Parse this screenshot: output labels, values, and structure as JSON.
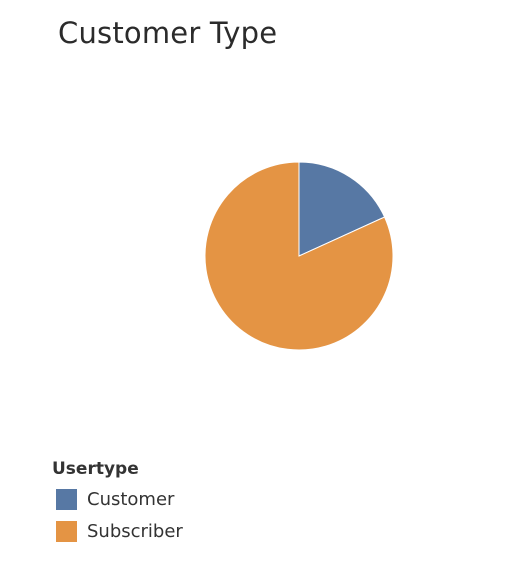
{
  "chart_data": {
    "type": "pie",
    "title": "Customer Type",
    "series": [
      {
        "name": "Usertype",
        "slices": [
          {
            "label": "Customer",
            "value": 18.2,
            "color": "#5778a4"
          },
          {
            "label": "Subscriber",
            "value": 81.8,
            "color": "#e49444"
          }
        ]
      }
    ],
    "legend": {
      "title": "Usertype",
      "placement": "bottom-left",
      "items": [
        {
          "label": "Customer",
          "color": "#5778a4"
        },
        {
          "label": "Subscriber",
          "color": "#e49444"
        }
      ]
    }
  }
}
